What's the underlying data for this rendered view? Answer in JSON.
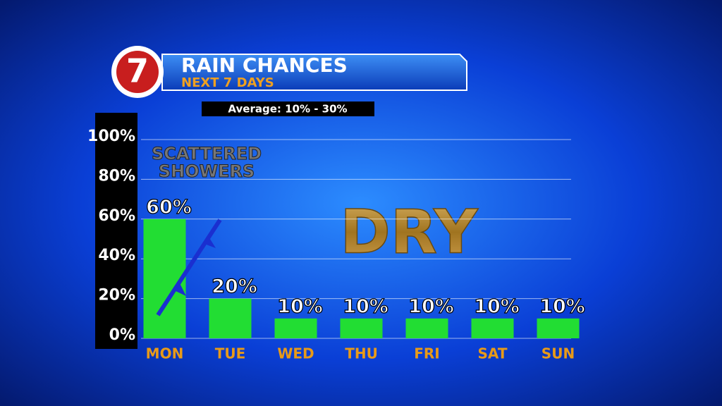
{
  "chart_data": {
    "type": "bar",
    "logo": "7",
    "title": "RAIN CHANCES",
    "subtitle": "NEXT 7 DAYS",
    "note": "Average: 10% - 30%",
    "annotations": [
      "SCATTERED",
      "SHOWERS",
      "DRY"
    ],
    "categories": [
      "MON",
      "TUE",
      "WED",
      "THU",
      "FRI",
      "SAT",
      "SUN"
    ],
    "values": [
      60,
      20,
      10,
      10,
      10,
      10,
      10
    ],
    "value_labels": [
      "60%",
      "20%",
      "10%",
      "10%",
      "10%",
      "10%",
      "10%"
    ],
    "color": "#22dd33",
    "ylim": [
      0,
      100
    ],
    "yticks": [
      {
        "value": 0,
        "label": "0%"
      },
      {
        "value": 20,
        "label": "20%"
      },
      {
        "value": 40,
        "label": "40%"
      },
      {
        "value": 60,
        "label": "60%"
      },
      {
        "value": 80,
        "label": "80%"
      },
      {
        "value": 100,
        "label": "100%"
      }
    ],
    "grid": true
  }
}
